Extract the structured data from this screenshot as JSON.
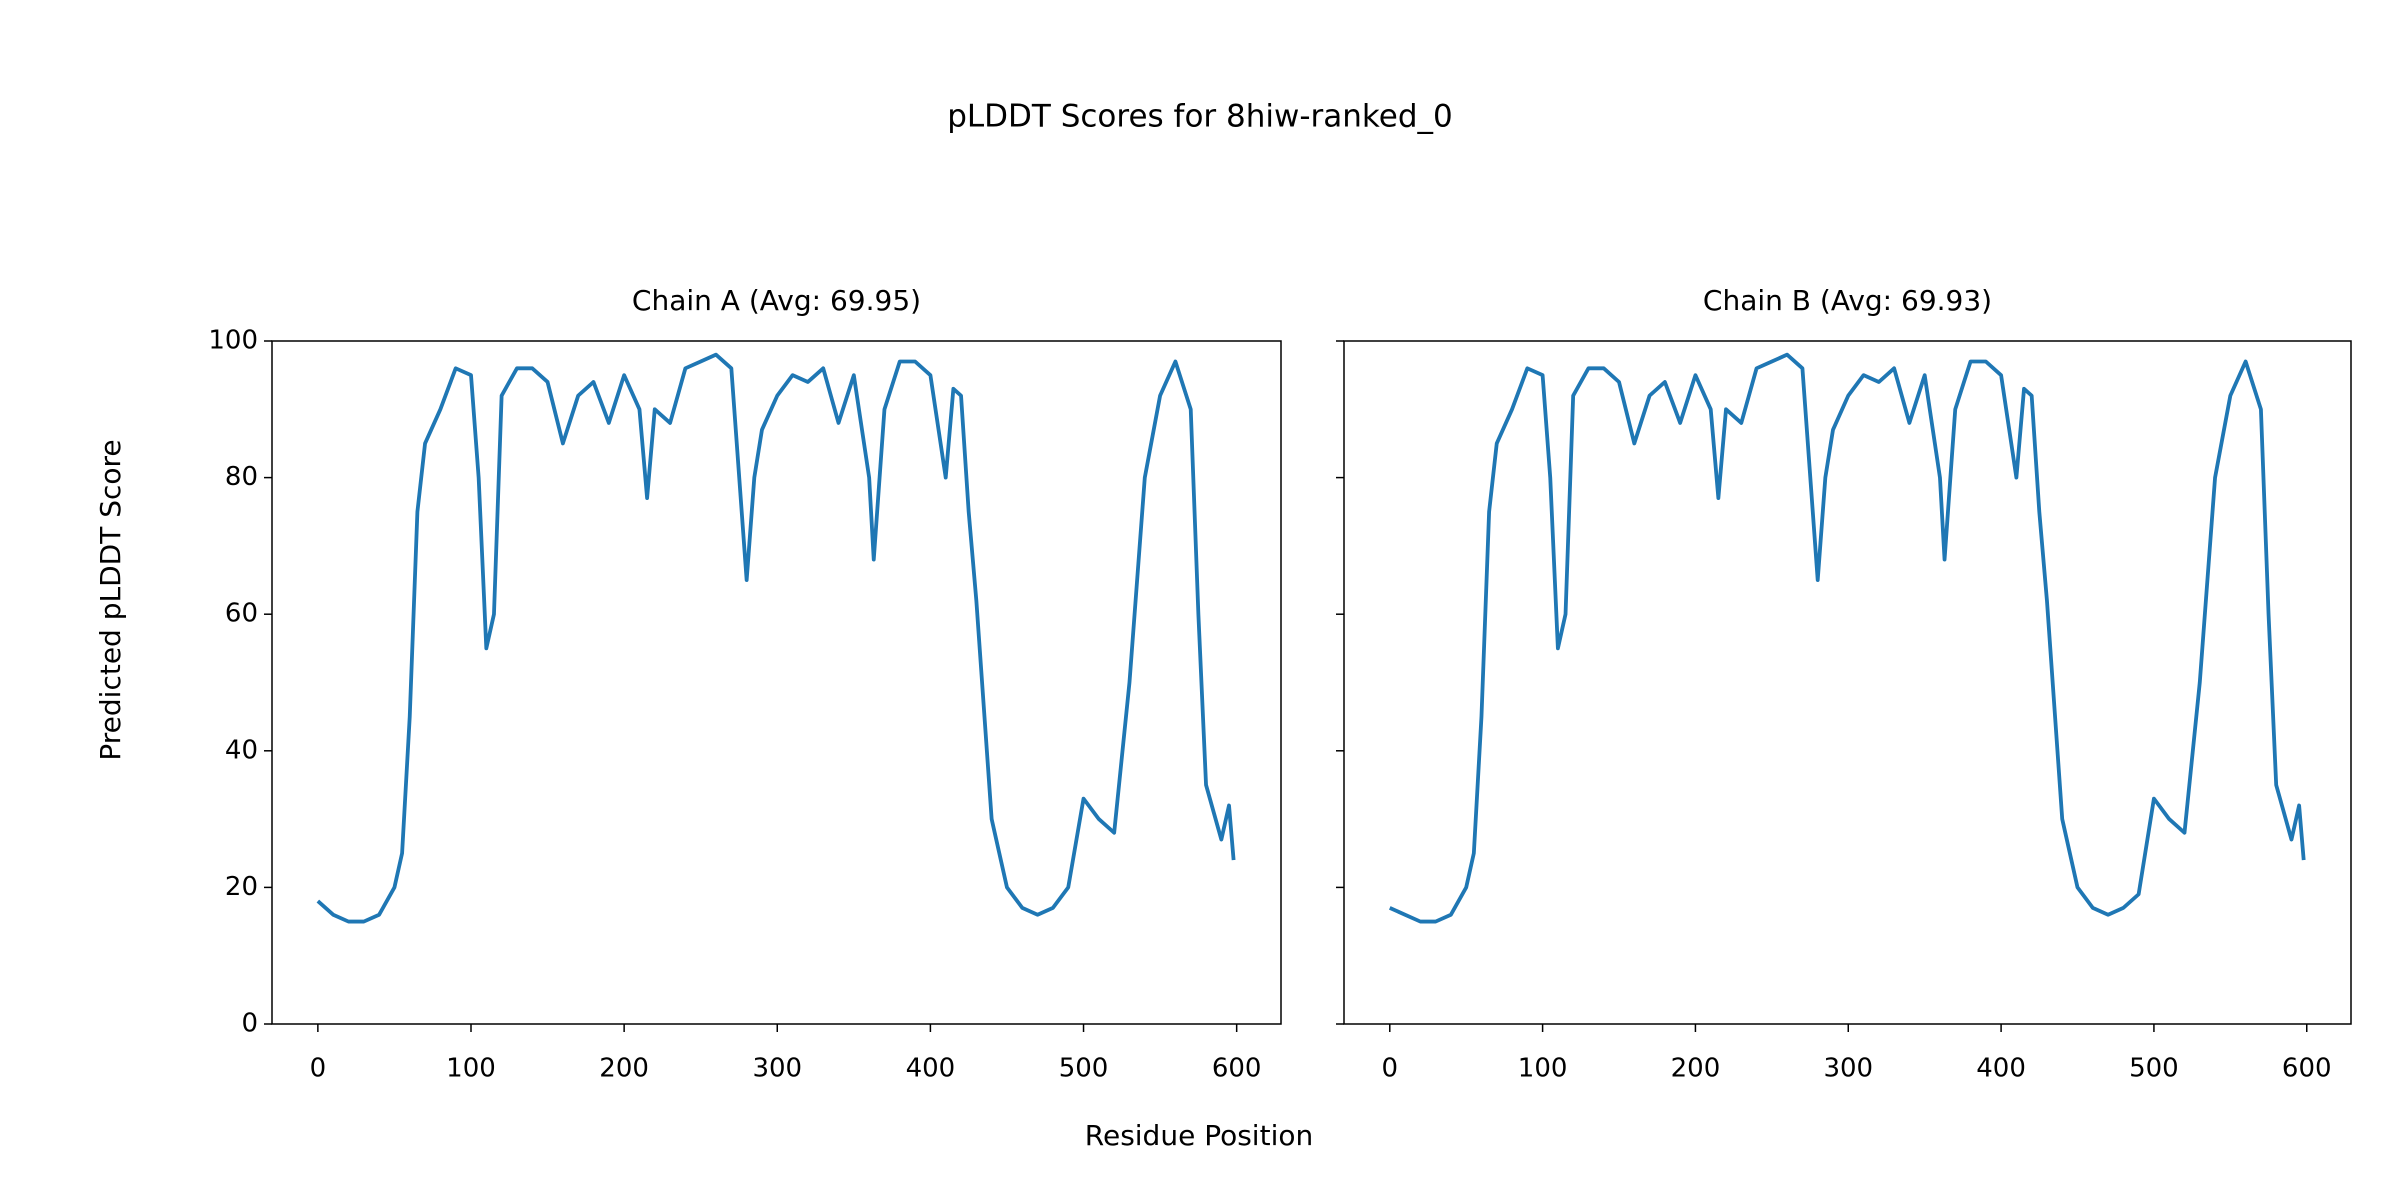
{
  "title": "pLDDT Scores for 8hiw-ranked_0",
  "x_label": "Residue Position",
  "y_label": "Predicted pLDDT Score",
  "chart_data": [
    {
      "type": "line",
      "title": "Chain A (Avg: 69.95)",
      "color": "#1f77b4",
      "x": [
        0,
        10,
        20,
        30,
        40,
        50,
        55,
        60,
        65,
        70,
        80,
        90,
        100,
        105,
        110,
        115,
        120,
        130,
        140,
        150,
        160,
        170,
        180,
        190,
        200,
        210,
        215,
        220,
        230,
        240,
        250,
        260,
        270,
        280,
        285,
        290,
        300,
        310,
        320,
        330,
        340,
        350,
        360,
        363,
        370,
        380,
        390,
        400,
        410,
        415,
        420,
        425,
        430,
        440,
        450,
        460,
        470,
        480,
        490,
        500,
        510,
        520,
        530,
        540,
        550,
        560,
        570,
        575,
        580,
        590,
        595,
        598
      ],
      "values": [
        18,
        16,
        15,
        15,
        16,
        20,
        25,
        45,
        75,
        85,
        90,
        96,
        95,
        80,
        55,
        60,
        92,
        96,
        96,
        94,
        85,
        92,
        94,
        88,
        95,
        90,
        77,
        90,
        88,
        96,
        97,
        98,
        96,
        65,
        80,
        87,
        92,
        95,
        94,
        96,
        88,
        95,
        80,
        68,
        90,
        97,
        97,
        95,
        80,
        93,
        92,
        75,
        62,
        30,
        20,
        17,
        16,
        17,
        20,
        33,
        30,
        28,
        50,
        80,
        92,
        97,
        90,
        60,
        35,
        27,
        32,
        24
      ],
      "xlim": [
        -29.95,
        628.95
      ],
      "ylim": [
        0,
        100
      ],
      "xticks": [
        0,
        100,
        200,
        300,
        400,
        500,
        600
      ],
      "yticks": [
        0,
        20,
        40,
        60,
        80,
        100
      ]
    },
    {
      "type": "line",
      "title": "Chain B (Avg: 69.93)",
      "color": "#1f77b4",
      "x": [
        0,
        10,
        20,
        30,
        40,
        50,
        55,
        60,
        65,
        70,
        80,
        90,
        100,
        105,
        110,
        115,
        120,
        130,
        140,
        150,
        160,
        170,
        180,
        190,
        200,
        210,
        215,
        220,
        230,
        240,
        250,
        260,
        270,
        280,
        285,
        290,
        300,
        310,
        320,
        330,
        340,
        350,
        360,
        363,
        370,
        380,
        390,
        400,
        410,
        415,
        420,
        425,
        430,
        440,
        450,
        460,
        470,
        480,
        490,
        500,
        510,
        520,
        530,
        540,
        550,
        560,
        570,
        575,
        580,
        590,
        595,
        598
      ],
      "values": [
        17,
        16,
        15,
        15,
        16,
        20,
        25,
        45,
        75,
        85,
        90,
        96,
        95,
        80,
        55,
        60,
        92,
        96,
        96,
        94,
        85,
        92,
        94,
        88,
        95,
        90,
        77,
        90,
        88,
        96,
        97,
        98,
        96,
        65,
        80,
        87,
        92,
        95,
        94,
        96,
        88,
        95,
        80,
        68,
        90,
        97,
        97,
        95,
        80,
        93,
        92,
        75,
        62,
        30,
        20,
        17,
        16,
        17,
        19,
        33,
        30,
        28,
        50,
        80,
        92,
        97,
        90,
        60,
        35,
        27,
        32,
        24
      ],
      "xlim": [
        -29.95,
        628.95
      ],
      "ylim": [
        0,
        100
      ],
      "xticks": [
        0,
        100,
        200,
        300,
        400,
        500,
        600
      ],
      "yticks": [
        0,
        20,
        40,
        60,
        80,
        100
      ]
    }
  ]
}
